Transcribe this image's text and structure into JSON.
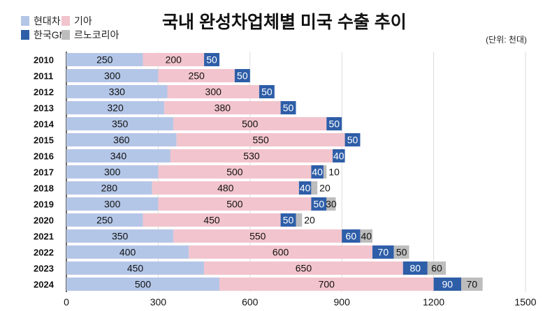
{
  "chart_data": {
    "type": "bar",
    "orientation": "horizontal",
    "stacked": true,
    "title": "국내 완성차업체별 미국 수출 추이",
    "unit_label": "(단위: 천대)",
    "categories": [
      "2010",
      "2011",
      "2012",
      "2013",
      "2014",
      "2015",
      "2016",
      "2017",
      "2018",
      "2019",
      "2020",
      "2021",
      "2022",
      "2023",
      "2024"
    ],
    "series": [
      {
        "name": "현대차",
        "color": "#b4c6e7",
        "label_color": "#111111",
        "values": [
          250,
          300,
          330,
          320,
          350,
          360,
          340,
          300,
          280,
          300,
          250,
          350,
          400,
          450,
          500
        ]
      },
      {
        "name": "기아",
        "color": "#f2c4cd",
        "label_color": "#111111",
        "values": [
          200,
          250,
          300,
          380,
          500,
          550,
          530,
          500,
          480,
          500,
          450,
          550,
          600,
          650,
          700
        ]
      },
      {
        "name": "한국GM",
        "color": "#2e5ea8",
        "label_color": "#ffffff",
        "values": [
          50,
          50,
          50,
          50,
          50,
          50,
          40,
          40,
          40,
          50,
          50,
          60,
          70,
          80,
          90
        ]
      },
      {
        "name": "르노코리아",
        "color": "#bdbdbd",
        "label_color": "#111111",
        "values": [
          null,
          null,
          null,
          null,
          null,
          null,
          null,
          10,
          20,
          30,
          20,
          40,
          50,
          60,
          70
        ]
      }
    ],
    "xticks": [
      0,
      300,
      600,
      900,
      1200,
      1500
    ],
    "xlim": [
      0,
      1500
    ],
    "grid": true,
    "legend_position": "top-left"
  }
}
